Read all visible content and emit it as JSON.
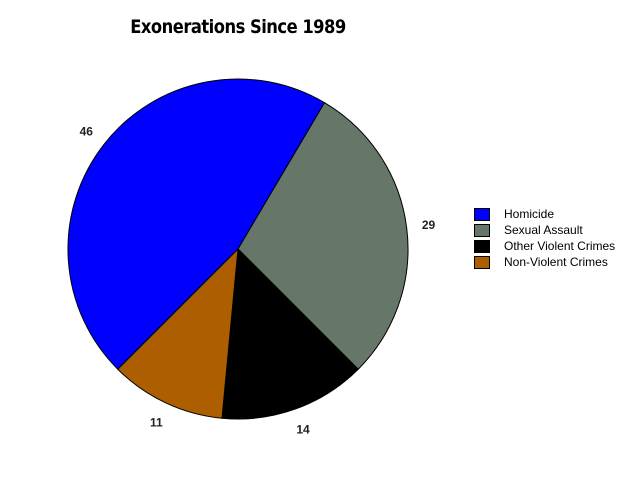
{
  "chart_data": {
    "type": "pie",
    "title": "Exonerations Since 1989",
    "categories": [
      "Homicide",
      "Sexual Assault",
      "Other Violent Crimes",
      "Non-Violent Crimes"
    ],
    "values": [
      46,
      29,
      14,
      11
    ],
    "colors": [
      "#0000ff",
      "#66776a",
      "#000000",
      "#ad5f00"
    ],
    "legend_position": "right"
  }
}
